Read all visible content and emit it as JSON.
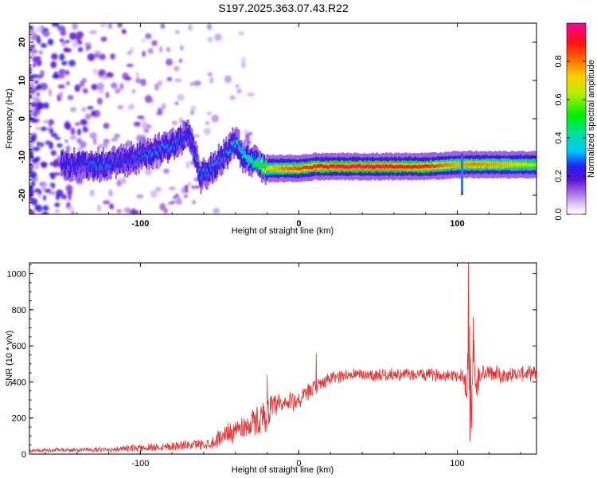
{
  "title": "S197.2025.363.07.43.R22",
  "chart_data": [
    {
      "type": "heatmap",
      "name": "spectrogram",
      "xlabel": "Height of straight line (km)",
      "ylabel": "Frequency (Hz)",
      "xlim": [
        -170,
        150
      ],
      "ylim": [
        -25,
        25
      ],
      "xticks": [
        -100,
        0,
        100
      ],
      "xtick_labels": [
        "-100",
        "0",
        "100"
      ],
      "yticks": [
        -20,
        -10,
        0,
        10,
        20
      ],
      "ytick_labels": [
        "-20",
        "-10",
        "0",
        "10",
        "20"
      ],
      "colorbar": {
        "label": "Normalized spectral amplitude",
        "range": [
          0,
          1
        ],
        "ticks": [
          0,
          0.2,
          0.4,
          0.6,
          0.8
        ],
        "tick_labels": [
          "0.0",
          "0.2",
          "0.4",
          "0.6",
          "0.8"
        ]
      },
      "ridge": {
        "description": "dominant frequency track vs height",
        "x": [
          -140,
          -125,
          -110,
          -95,
          -80,
          -70,
          -62,
          -55,
          -48,
          -40,
          -35,
          -30,
          -20,
          -10,
          0,
          10,
          25,
          50,
          80,
          100,
          110,
          130,
          150
        ],
        "y": [
          -12,
          -12,
          -11,
          -9,
          -7,
          -4,
          -15,
          -13,
          -10,
          -6,
          -10,
          -11,
          -13,
          -13,
          -13,
          -12.5,
          -12.5,
          -12.5,
          -12.5,
          -12,
          -12,
          -12,
          -12
        ],
        "amplitude": [
          0.25,
          0.3,
          0.25,
          0.3,
          0.3,
          0.25,
          0.3,
          0.3,
          0.3,
          0.35,
          0.4,
          0.45,
          0.7,
          0.8,
          0.85,
          0.9,
          0.95,
          0.95,
          0.9,
          0.75,
          0.8,
          0.75,
          0.65
        ]
      }
    },
    {
      "type": "line",
      "name": "snr",
      "xlabel": "Height of straight line (km)",
      "ylabel": "SNR (10 * v/v)",
      "xlim": [
        -170,
        150
      ],
      "ylim": [
        0,
        1060
      ],
      "xticks": [
        -100,
        0,
        100
      ],
      "xtick_labels": [
        "-100",
        "0",
        "100"
      ],
      "yticks": [
        0,
        200,
        400,
        600,
        800,
        1000
      ],
      "ytick_labels": [
        "0",
        "200",
        "400",
        "600",
        "800",
        "1000"
      ],
      "color": "#e83030",
      "envelope": {
        "x": [
          -170,
          -120,
          -90,
          -70,
          -55,
          -45,
          -35,
          -25,
          -20,
          -15,
          -10,
          -5,
          0,
          5,
          10,
          15,
          20,
          30,
          50,
          80,
          100,
          104,
          106,
          107,
          108,
          109,
          110,
          112,
          115,
          130,
          150
        ],
        "mean": [
          20,
          25,
          40,
          50,
          60,
          120,
          150,
          190,
          230,
          260,
          270,
          290,
          300,
          330,
          370,
          400,
          420,
          440,
          440,
          440,
          440,
          430,
          350,
          650,
          500,
          180,
          600,
          350,
          450,
          440,
          450
        ],
        "spread": [
          12,
          15,
          30,
          30,
          40,
          70,
          80,
          100,
          110,
          90,
          80,
          70,
          60,
          60,
          50,
          50,
          45,
          40,
          40,
          40,
          40,
          60,
          150,
          300,
          420,
          120,
          180,
          150,
          60,
          50,
          45
        ]
      },
      "peaks": [
        {
          "x": 107,
          "y": 1060
        },
        {
          "x": 108,
          "y": 70
        },
        {
          "x": 110,
          "y": 760
        },
        {
          "x": 11,
          "y": 560
        },
        {
          "x": -20,
          "y": 440
        }
      ]
    }
  ],
  "colors": {
    "axis": "#000000",
    "line": "#e83030"
  }
}
